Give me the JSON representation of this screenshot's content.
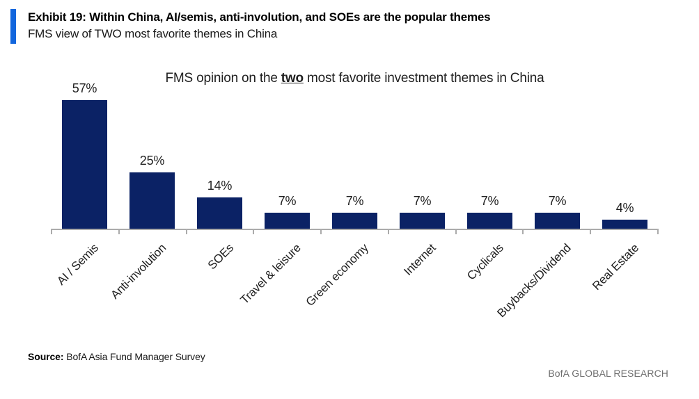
{
  "header": {
    "exhibit_title": "Exhibit 19: Within China, AI/semis, anti-involution, and SOEs are the popular themes",
    "subtitle": "FMS view of TWO most favorite themes in China",
    "accent_color": "#1266DD"
  },
  "chart_data": {
    "type": "bar",
    "title": "FMS opinion on the two most favorite investment themes in China",
    "title_prefix": "FMS opinion on the ",
    "title_emphasis": "two",
    "title_suffix": " most favorite investment themes in China",
    "categories": [
      "AI / Semis",
      "Anti-involution",
      "SOEs",
      "Travel & leisure",
      "Green economy",
      "Internet",
      "Cyclicals",
      "Buybacks/Dividend",
      "Real Estate"
    ],
    "values": [
      57,
      25,
      14,
      7,
      7,
      7,
      7,
      7,
      4
    ],
    "value_labels": [
      "57%",
      "25%",
      "14%",
      "7%",
      "7%",
      "7%",
      "7%",
      "7%",
      "4%"
    ],
    "bar_color": "#0B2265",
    "axis_color": "#ABABAB",
    "ylim": [
      0,
      60
    ],
    "grid": false,
    "legend": "none",
    "xlabel": "",
    "ylabel": ""
  },
  "footer": {
    "source_label": "Source:",
    "source_text": " BofA Asia Fund Manager Survey",
    "brand": "BofA GLOBAL RESEARCH"
  }
}
